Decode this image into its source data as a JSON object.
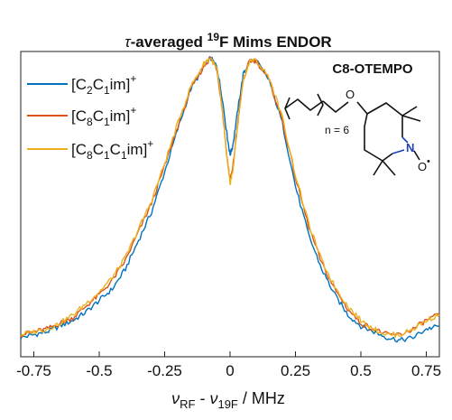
{
  "chart_data": {
    "type": "line",
    "title": {
      "symbol": "τ",
      "pre": "-averaged ",
      "sup": "19",
      "post": "F Mims ENDOR"
    },
    "xlabel": {
      "nu1": "ν",
      "sub1": "RF",
      "mid": " - ",
      "nu2": "ν",
      "sub2": "19F",
      "unit": " / MHz"
    },
    "ylabel": "",
    "xlim": [
      -0.8,
      0.8
    ],
    "ylim": [
      0,
      1.06
    ],
    "xticks": [
      -0.75,
      -0.5,
      -0.25,
      0,
      0.25,
      0.5,
      0.75
    ],
    "xtick_labels": [
      "-0.75",
      "-0.5",
      "-0.25",
      "0",
      "0.25",
      "0.5",
      "0.75"
    ],
    "grid": false,
    "legend_position": "top-left",
    "series": [
      {
        "name": {
          "a": "[C",
          "s1": "2",
          "b": "C",
          "s2": "1",
          "c": "im]",
          "sup": "+"
        },
        "color": "#0072BD",
        "x": [
          -0.8,
          -0.75,
          -0.7,
          -0.65,
          -0.6,
          -0.55,
          -0.5,
          -0.45,
          -0.4,
          -0.35,
          -0.3,
          -0.25,
          -0.2,
          -0.15,
          -0.1,
          -0.075,
          -0.05,
          -0.03,
          -0.01,
          0,
          0.01,
          0.03,
          0.05,
          0.075,
          0.1,
          0.15,
          0.2,
          0.25,
          0.3,
          0.35,
          0.4,
          0.45,
          0.5,
          0.55,
          0.6,
          0.65,
          0.7,
          0.75,
          0.8
        ],
        "y": [
          0.02,
          0.03,
          0.04,
          0.06,
          0.08,
          0.11,
          0.15,
          0.19,
          0.26,
          0.36,
          0.46,
          0.6,
          0.75,
          0.89,
          0.97,
          1.0,
          0.97,
          0.86,
          0.72,
          0.66,
          0.69,
          0.82,
          0.94,
          0.99,
          0.99,
          0.92,
          0.77,
          0.55,
          0.38,
          0.26,
          0.17,
          0.1,
          0.06,
          0.04,
          0.02,
          0.01,
          0.02,
          0.05,
          0.06
        ]
      },
      {
        "name": {
          "a": "[C",
          "s1": "8",
          "b": "C",
          "s2": "1",
          "c": "im]",
          "sup": "+"
        },
        "color": "#D95319",
        "x": [
          -0.8,
          -0.75,
          -0.7,
          -0.65,
          -0.6,
          -0.55,
          -0.5,
          -0.45,
          -0.4,
          -0.35,
          -0.3,
          -0.25,
          -0.2,
          -0.15,
          -0.1,
          -0.075,
          -0.05,
          -0.03,
          -0.01,
          0,
          0.01,
          0.03,
          0.05,
          0.075,
          0.1,
          0.15,
          0.2,
          0.25,
          0.3,
          0.35,
          0.4,
          0.45,
          0.5,
          0.55,
          0.6,
          0.65,
          0.7,
          0.75,
          0.8
        ],
        "y": [
          0.03,
          0.04,
          0.05,
          0.07,
          0.09,
          0.13,
          0.17,
          0.22,
          0.29,
          0.39,
          0.49,
          0.62,
          0.76,
          0.89,
          0.97,
          1.0,
          0.96,
          0.82,
          0.64,
          0.57,
          0.61,
          0.78,
          0.92,
          0.99,
          0.99,
          0.92,
          0.78,
          0.58,
          0.41,
          0.28,
          0.19,
          0.12,
          0.07,
          0.05,
          0.03,
          0.03,
          0.05,
          0.08,
          0.1
        ]
      },
      {
        "name": {
          "a": "[C",
          "s1": "8",
          "b": "C",
          "s2": "1",
          "c": "C",
          "s3": "1",
          "d": "im]",
          "sup": "+"
        },
        "color": "#EDB120",
        "x": [
          -0.8,
          -0.75,
          -0.7,
          -0.65,
          -0.6,
          -0.55,
          -0.5,
          -0.45,
          -0.4,
          -0.35,
          -0.3,
          -0.25,
          -0.2,
          -0.15,
          -0.1,
          -0.075,
          -0.05,
          -0.03,
          -0.01,
          0,
          0.01,
          0.03,
          0.05,
          0.075,
          0.1,
          0.15,
          0.2,
          0.25,
          0.3,
          0.35,
          0.4,
          0.45,
          0.5,
          0.55,
          0.6,
          0.65,
          0.7,
          0.75,
          0.8
        ],
        "y": [
          0.03,
          0.04,
          0.05,
          0.07,
          0.1,
          0.14,
          0.18,
          0.23,
          0.3,
          0.4,
          0.5,
          0.63,
          0.77,
          0.9,
          0.98,
          1.0,
          0.96,
          0.82,
          0.63,
          0.56,
          0.6,
          0.77,
          0.92,
          0.99,
          0.99,
          0.93,
          0.79,
          0.59,
          0.42,
          0.29,
          0.2,
          0.13,
          0.08,
          0.05,
          0.03,
          0.03,
          0.05,
          0.08,
          0.1
        ]
      }
    ],
    "annotation": {
      "label": "C8-OTEMPO",
      "n_label": "n = 6",
      "atom_O1": "O",
      "atom_N": "N",
      "atom_O2": "O",
      "radical": "•"
    }
  }
}
